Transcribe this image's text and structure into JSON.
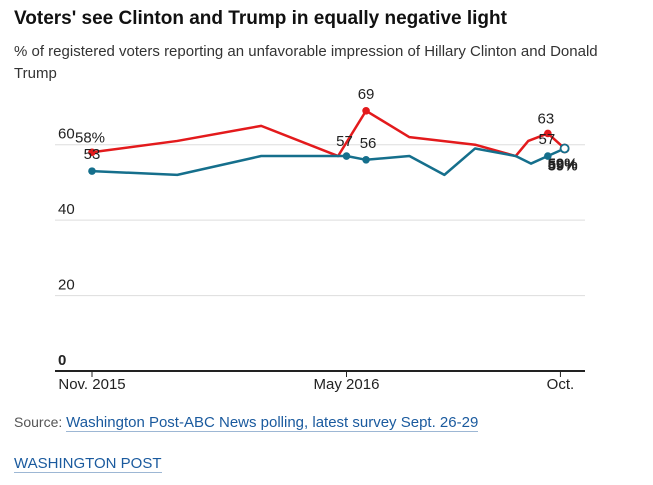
{
  "header": {
    "title": "Voters' see Clinton and Trump in equally negative light",
    "subtitle": "% of registered voters reporting an unfavorable impression of Hillary Clinton and Donald Trump"
  },
  "footer": {
    "source_prefix": "Source: ",
    "source_link": "Washington Post-ABC News polling, latest survey Sept. 26-29",
    "brand": "WASHINGTON POST"
  },
  "chart_data": {
    "type": "line",
    "title": "Voters' see Clinton and Trump in equally negative light",
    "subtitle": "% of registered voters reporting an unfavorable impression of Hillary Clinton and Donald Trump",
    "xlabel": "",
    "ylabel": "",
    "x_ticks": [
      {
        "date": "2015-11-01",
        "label": "Nov. 2015"
      },
      {
        "date": "2016-05-01",
        "label": "May 2016"
      },
      {
        "date": "2016-10-01",
        "label": "Oct."
      }
    ],
    "x_range": [
      "2015-11-01",
      "2016-10-15"
    ],
    "y_ticks": [
      0,
      20,
      40,
      60
    ],
    "ylim": [
      0,
      70
    ],
    "grid": true,
    "legend": "none",
    "colors": {
      "trump": "#e31a1c",
      "clinton": "#156f8c",
      "grid": "#dddddd",
      "axis": "#222222"
    },
    "series": [
      {
        "key": "trump",
        "color": "#e31a1c",
        "points": [
          {
            "x": "2015-11-01",
            "y": 58,
            "label": "58%",
            "dot": true
          },
          {
            "x": "2016-01-01",
            "y": 61
          },
          {
            "x": "2016-03-01",
            "y": 65
          },
          {
            "x": "2016-04-25",
            "y": 57
          },
          {
            "x": "2016-05-15",
            "y": 69,
            "label": "69",
            "dot": true
          },
          {
            "x": "2016-06-15",
            "y": 62
          },
          {
            "x": "2016-08-01",
            "y": 60
          },
          {
            "x": "2016-08-30",
            "y": 57
          },
          {
            "x": "2016-09-08",
            "y": 61
          },
          {
            "x": "2016-09-22",
            "y": 63,
            "label": "63",
            "dot": true
          },
          {
            "x": "2016-10-04",
            "y": 59,
            "label": "59%",
            "dot": true,
            "hollow": true
          }
        ]
      },
      {
        "key": "clinton",
        "color": "#156f8c",
        "points": [
          {
            "x": "2015-11-01",
            "y": 53,
            "label": "53",
            "dot": true
          },
          {
            "x": "2016-01-01",
            "y": 52
          },
          {
            "x": "2016-03-01",
            "y": 57
          },
          {
            "x": "2016-05-01",
            "y": 57,
            "label": "57",
            "dot": true
          },
          {
            "x": "2016-05-15",
            "y": 56,
            "label": "56",
            "dot": true
          },
          {
            "x": "2016-06-15",
            "y": 57
          },
          {
            "x": "2016-07-10",
            "y": 52
          },
          {
            "x": "2016-08-01",
            "y": 59
          },
          {
            "x": "2016-08-30",
            "y": 57
          },
          {
            "x": "2016-09-10",
            "y": 55
          },
          {
            "x": "2016-09-22",
            "y": 57,
            "label": "57",
            "dot": true
          },
          {
            "x": "2016-10-04",
            "y": 59,
            "label": "59%",
            "dot": true,
            "hollow": true
          }
        ]
      }
    ]
  }
}
